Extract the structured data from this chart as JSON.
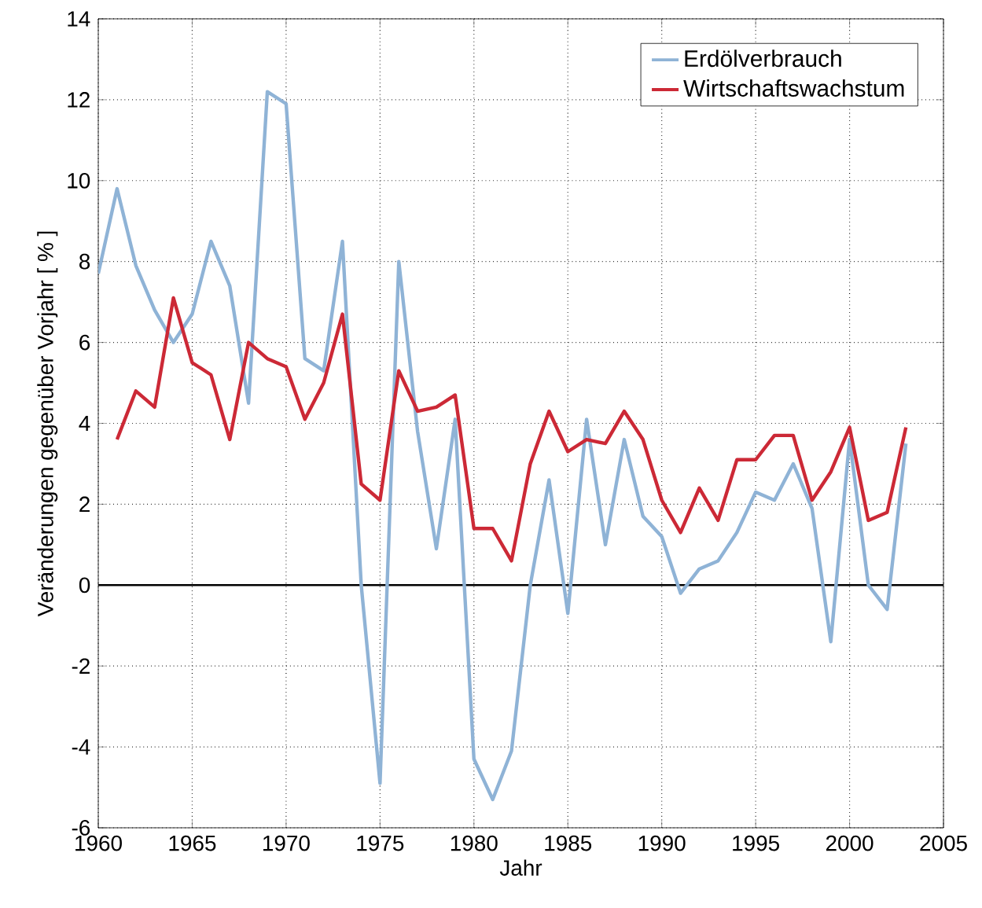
{
  "chart_data": {
    "type": "line",
    "xlabel": "Jahr",
    "ylabel": "Veränderungen gegenüber Vorjahr [ % ]",
    "xlim": [
      1960,
      2005
    ],
    "ylim": [
      -6,
      14
    ],
    "xticks": [
      1960,
      1965,
      1970,
      1975,
      1980,
      1985,
      1990,
      1995,
      2000,
      2005
    ],
    "yticks": [
      -6,
      -4,
      -2,
      0,
      2,
      4,
      6,
      8,
      10,
      12,
      14
    ],
    "grid": true,
    "legend": "top right",
    "line_style": "solid",
    "marker": "none",
    "ref_lines": [
      {
        "axis": "y",
        "value": 0,
        "color": "#000000"
      }
    ],
    "series": [
      {
        "name": "Erdölverbrauch",
        "color": "#8fb3d6",
        "x": [
          1960,
          1961,
          1962,
          1963,
          1964,
          1965,
          1966,
          1967,
          1968,
          1969,
          1970,
          1971,
          1972,
          1973,
          1974,
          1975,
          1976,
          1977,
          1978,
          1979,
          1980,
          1981,
          1982,
          1983,
          1984,
          1985,
          1986,
          1987,
          1988,
          1989,
          1990,
          1991,
          1992,
          1993,
          1994,
          1995,
          1996,
          1997,
          1998,
          1999,
          2000,
          2001,
          2002,
          2003
        ],
        "values": [
          7.7,
          9.8,
          7.9,
          6.8,
          6.0,
          6.7,
          8.5,
          7.4,
          4.5,
          12.2,
          11.9,
          5.6,
          5.3,
          8.5,
          0.0,
          -4.9,
          8.0,
          3.8,
          0.9,
          4.1,
          -4.3,
          -5.3,
          -4.1,
          0.0,
          2.6,
          -0.7,
          4.1,
          1.0,
          3.6,
          1.7,
          1.2,
          -0.2,
          0.4,
          0.6,
          1.3,
          2.3,
          2.1,
          3.0,
          1.9,
          -1.4,
          3.6,
          0.0,
          -0.6,
          3.5
        ]
      },
      {
        "name": "Wirtschaftswachstum",
        "color": "#cc2936",
        "x": [
          1961,
          1962,
          1963,
          1964,
          1965,
          1966,
          1967,
          1968,
          1969,
          1970,
          1971,
          1972,
          1973,
          1974,
          1975,
          1976,
          1977,
          1978,
          1979,
          1980,
          1981,
          1982,
          1983,
          1984,
          1985,
          1986,
          1987,
          1988,
          1989,
          1990,
          1991,
          1992,
          1993,
          1994,
          1995,
          1996,
          1997,
          1998,
          1999,
          2000,
          2001,
          2002,
          2003
        ],
        "values": [
          3.6,
          4.8,
          4.4,
          7.1,
          5.5,
          5.2,
          3.6,
          6.0,
          5.6,
          5.4,
          4.1,
          5.0,
          6.7,
          2.5,
          2.1,
          5.3,
          4.3,
          4.4,
          4.7,
          1.4,
          1.4,
          0.6,
          3.0,
          4.3,
          3.3,
          3.6,
          3.5,
          4.3,
          3.6,
          2.1,
          1.3,
          2.4,
          1.6,
          3.1,
          3.1,
          3.7,
          3.7,
          2.1,
          2.8,
          3.9,
          1.6,
          1.8,
          3.9
        ]
      }
    ]
  }
}
